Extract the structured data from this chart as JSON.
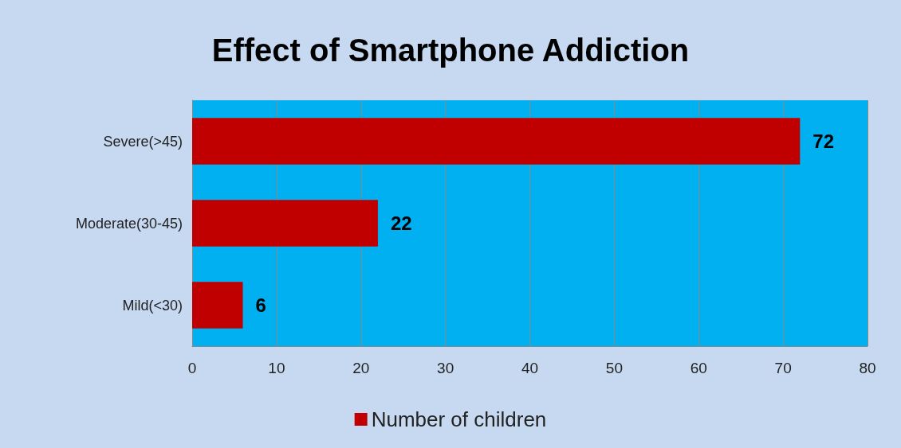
{
  "chart_data": {
    "type": "bar",
    "orientation": "horizontal",
    "title": "Effect of Smartphone Addiction",
    "categories": [
      "Severe(>45)",
      "Moderate(30-45)",
      "Mild(<30)"
    ],
    "series": [
      {
        "name": "Number of children",
        "color": "#c00000",
        "values": [
          72,
          22,
          6
        ]
      }
    ],
    "xlim": [
      0,
      80
    ],
    "xticks": [
      0,
      10,
      20,
      30,
      40,
      50,
      60,
      70,
      80
    ],
    "grid": "x",
    "legend": "bottom",
    "data_labels": true
  }
}
